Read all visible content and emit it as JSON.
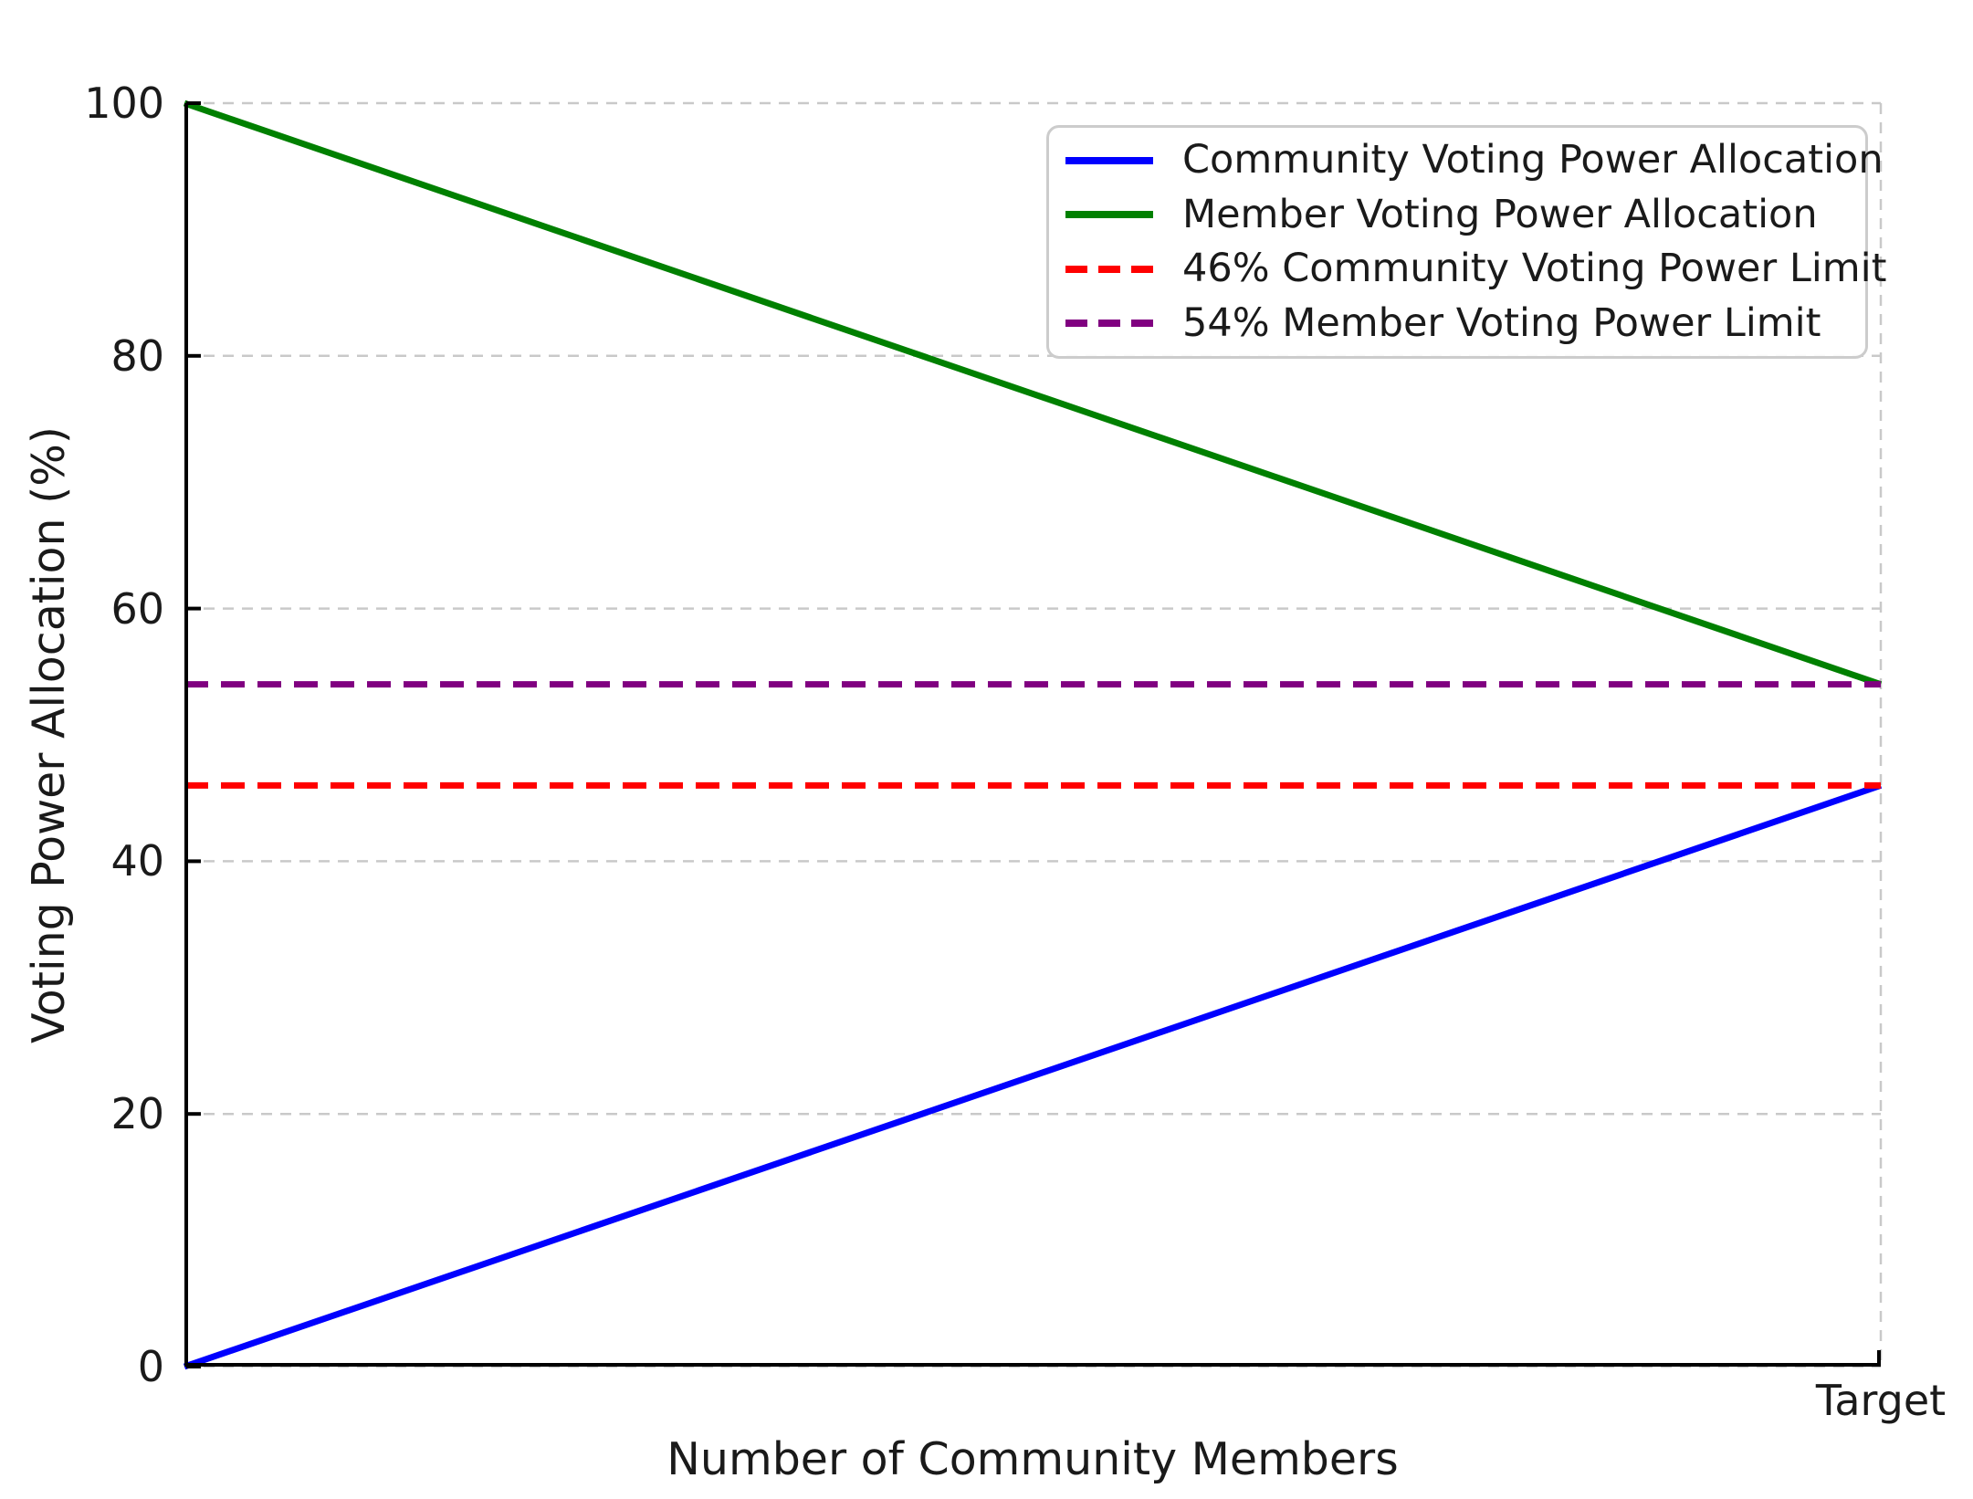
{
  "chart_data": {
    "type": "line",
    "title": "",
    "xlabel": "Number of Community Members",
    "ylabel": "Voting Power Allocation (%)",
    "xlim": [
      0,
      1
    ],
    "ylim": [
      0,
      100
    ],
    "yticks": [
      0,
      20,
      40,
      60,
      80,
      100
    ],
    "xticks": [
      {
        "x": 1,
        "label": "Target"
      }
    ],
    "grid": {
      "show": true,
      "style": "dashed",
      "color": "#c9c9c9"
    },
    "legend_position": "upper right",
    "series": [
      {
        "name": "Community Voting Power Allocation",
        "color": "#0000ff",
        "line_style": "solid",
        "x": [
          0,
          1
        ],
        "y": [
          0,
          46
        ]
      },
      {
        "name": "Member Voting Power Allocation",
        "color": "#008000",
        "line_style": "solid",
        "x": [
          0,
          1
        ],
        "y": [
          100,
          54
        ]
      },
      {
        "name": "46% Community Voting Power Limit",
        "color": "#ff0000",
        "line_style": "dashed",
        "x": [
          0,
          1
        ],
        "y": [
          46,
          46
        ]
      },
      {
        "name": "54% Member Voting Power Limit",
        "color": "#800080",
        "line_style": "dashed",
        "x": [
          0,
          1
        ],
        "y": [
          54,
          54
        ]
      }
    ],
    "axis_color": "#000000"
  }
}
